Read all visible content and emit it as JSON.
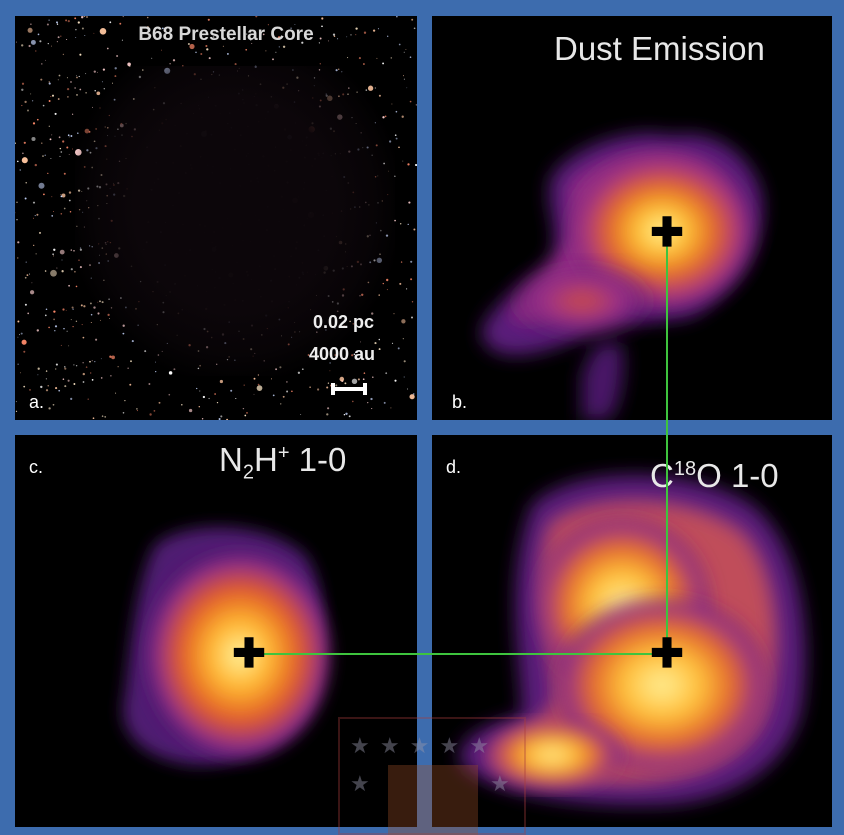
{
  "panels": {
    "a": {
      "letter": "a.",
      "title": "B68 Prestellar Core",
      "scale_pc": "0.02 pc",
      "scale_au": "4000 au"
    },
    "b": {
      "letter": "b.",
      "title": "Dust Emission"
    },
    "c": {
      "letter": "c.",
      "title_species": "N2H+",
      "title_transition": "1-0"
    },
    "d": {
      "letter": "d.",
      "title_species": "C18O",
      "title_transition": "1-0"
    }
  },
  "colors": {
    "frame": "#3d6cae",
    "guide_line": "#3ec43e",
    "crosshair": "#000000"
  },
  "icons": {
    "crosshair": "plus-marker",
    "watermark": "university-crest"
  }
}
